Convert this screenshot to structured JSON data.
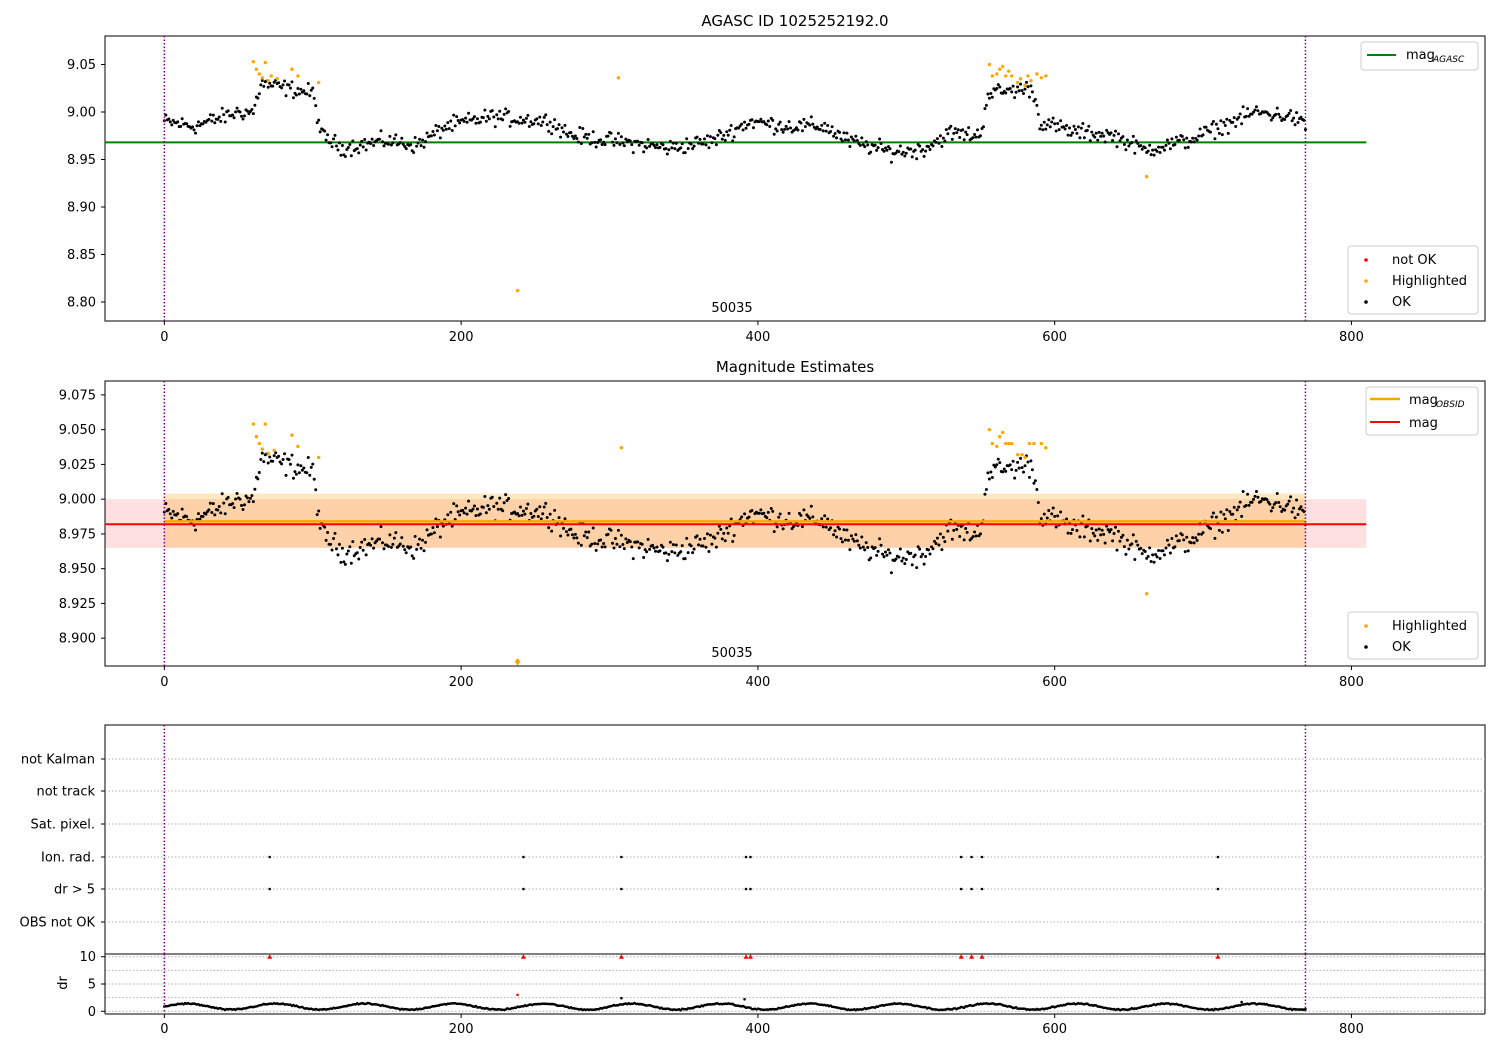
{
  "figure": {
    "title": "AGASC ID 1025252192.0",
    "colors": {
      "ok": "#000000",
      "highlighted": "#ffa500",
      "not_ok": "#ff0000",
      "agasc_line": "#008000",
      "mag_line": "#ff0000",
      "obsid_line": "#ffa500",
      "obs_boundary": "#800080"
    }
  },
  "chart_data": [
    {
      "type": "scatter",
      "title": "",
      "xlim": [
        -40,
        890
      ],
      "ylim": [
        8.78,
        9.08
      ],
      "x_ticks": [
        0,
        200,
        400,
        600,
        800
      ],
      "y_ticks": [
        8.8,
        8.85,
        8.9,
        8.95,
        9.0,
        9.05
      ],
      "y_tick_labels": [
        "8.80",
        "8.85",
        "8.90",
        "8.95",
        "9.00",
        "9.05"
      ],
      "obs_boundaries": [
        0,
        769
      ],
      "obsid_label": "50035",
      "mag_agasc": 8.968,
      "mag_agasc_xrange": [
        -40,
        810
      ],
      "legend_lines": [
        {
          "label": "mag",
          "subscript": "AGASC",
          "color": "#008000"
        }
      ],
      "legend_points": [
        {
          "label": "not OK",
          "color": "#ff0000"
        },
        {
          "label": "Highlighted",
          "color": "#ffa500"
        },
        {
          "label": "OK",
          "color": "#000000"
        }
      ],
      "highlighted_points": [
        [
          60,
          9.053
        ],
        [
          62,
          9.045
        ],
        [
          64,
          9.04
        ],
        [
          66,
          9.036
        ],
        [
          68,
          9.052
        ],
        [
          70,
          9.033
        ],
        [
          72,
          9.038
        ],
        [
          76,
          9.035
        ],
        [
          86,
          9.045
        ],
        [
          90,
          9.038
        ],
        [
          104,
          9.031
        ],
        [
          238,
          8.812
        ],
        [
          306,
          9.036
        ],
        [
          556,
          9.05
        ],
        [
          558,
          9.038
        ],
        [
          561,
          9.04
        ],
        [
          563,
          9.045
        ],
        [
          565,
          9.048
        ],
        [
          567,
          9.038
        ],
        [
          569,
          9.043
        ],
        [
          571,
          9.038
        ],
        [
          575,
          9.031
        ],
        [
          577,
          9.035
        ],
        [
          580,
          9.028
        ],
        [
          582,
          9.038
        ],
        [
          584,
          9.033
        ],
        [
          588,
          9.04
        ],
        [
          591,
          9.036
        ],
        [
          594,
          9.038
        ],
        [
          662,
          8.932
        ]
      ]
    },
    {
      "type": "scatter",
      "title": "Magnitude Estimates",
      "xlim": [
        -40,
        890
      ],
      "ylim": [
        8.88,
        9.085
      ],
      "x_ticks": [
        0,
        200,
        400,
        600,
        800
      ],
      "y_ticks": [
        8.9,
        8.925,
        8.95,
        8.975,
        9.0,
        9.025,
        9.05,
        9.075
      ],
      "y_tick_labels": [
        "8.900",
        "8.925",
        "8.950",
        "8.975",
        "9.000",
        "9.025",
        "9.050",
        "9.075"
      ],
      "obs_boundaries": [
        0,
        769
      ],
      "obsid_label": "50035",
      "mag": 8.982,
      "mag_band": [
        8.965,
        9.0
      ],
      "mag_band_xrange": [
        -40,
        810
      ],
      "mag_obsid": 8.984,
      "mag_obsid_band": [
        8.965,
        9.004
      ],
      "mag_obsid_xrange": [
        0,
        769
      ],
      "legend_lines": [
        {
          "label": "mag",
          "subscript": "OBSID",
          "color": "#ffa500"
        },
        {
          "label": "mag",
          "subscript": "",
          "color": "#ff0000"
        }
      ],
      "legend_points": [
        {
          "label": "Highlighted",
          "color": "#ffa500"
        },
        {
          "label": "OK",
          "color": "#000000"
        }
      ],
      "highlighted_points": [
        [
          60,
          9.054
        ],
        [
          62,
          9.045
        ],
        [
          64,
          9.04
        ],
        [
          66,
          9.036
        ],
        [
          68,
          9.054
        ],
        [
          70,
          9.033
        ],
        [
          74,
          9.035
        ],
        [
          86,
          9.046
        ],
        [
          90,
          9.038
        ],
        [
          104,
          9.03
        ],
        [
          238,
          8.884
        ],
        [
          308,
          9.037
        ],
        [
          556,
          9.05
        ],
        [
          558,
          9.04
        ],
        [
          561,
          9.038
        ],
        [
          563,
          9.045
        ],
        [
          565,
          9.048
        ],
        [
          567,
          9.04
        ],
        [
          569,
          9.04
        ],
        [
          571,
          9.04
        ],
        [
          575,
          9.032
        ],
        [
          578,
          9.032
        ],
        [
          580,
          9.03
        ],
        [
          583,
          9.04
        ],
        [
          586,
          9.04
        ],
        [
          591,
          9.04
        ],
        [
          594,
          9.037
        ],
        [
          662,
          8.932
        ]
      ],
      "out_of_range_markers": [
        [
          238,
          8.884
        ]
      ]
    },
    {
      "type": "scatter",
      "title": "",
      "xlim": [
        -40,
        890
      ],
      "category_labels": [
        "not Kalman",
        "not track",
        "Sat. pixel.",
        "Ion. rad.",
        "dr > 5",
        "OBS not OK"
      ],
      "obs_boundaries": [
        0,
        769
      ],
      "flag_x": [
        71,
        242,
        308,
        392,
        395,
        537,
        544,
        551,
        710
      ],
      "flagged_categories": [
        "Ion. rad.",
        "dr > 5"
      ]
    },
    {
      "type": "scatter",
      "title": "",
      "ylabel": "dr",
      "xlim": [
        -40,
        890
      ],
      "ylim": [
        -0.5,
        10.5
      ],
      "x_ticks": [
        0,
        200,
        400,
        600,
        800
      ],
      "y_ticks": [
        0,
        5,
        10
      ],
      "y_tick_labels": [
        "0",
        "5",
        "10"
      ],
      "obs_boundaries": [
        0,
        769
      ],
      "not_ok_x": [
        71,
        242,
        308,
        392,
        395,
        537,
        544,
        551,
        710
      ],
      "not_ok_y": 10,
      "dr_spikes": [
        [
          238,
          3.0
        ],
        [
          308,
          2.4
        ],
        [
          391,
          2.2
        ],
        [
          726,
          1.7
        ]
      ],
      "dr_wave": {
        "start": 0,
        "end": 769,
        "mean": 0.85,
        "amplitude": 0.55,
        "period": 60
      }
    }
  ]
}
